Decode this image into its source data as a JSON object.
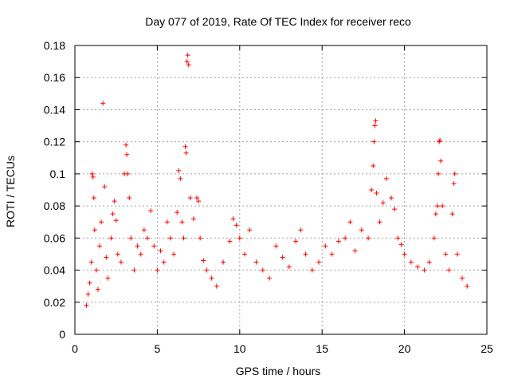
{
  "chart_data": {
    "type": "scatter",
    "title": "Day 077 of 2019, Rate Of TEC Index for receiver reco",
    "xlabel": "GPS time / hours",
    "ylabel": "ROTI / TECUs",
    "xlim": [
      0,
      25
    ],
    "ylim": [
      0,
      0.18
    ],
    "xticks": [
      0,
      5,
      10,
      15,
      20,
      25
    ],
    "xtick_labels": [
      "0",
      "5",
      "10",
      "15",
      "20",
      "25"
    ],
    "yticks": [
      0,
      0.02,
      0.04,
      0.06,
      0.08,
      0.1,
      0.12,
      0.14,
      0.16,
      0.18
    ],
    "ytick_labels": [
      "0",
      "0.02",
      "0.04",
      "0.06",
      "0.08",
      "0.1",
      "0.12",
      "0.14",
      "0.16",
      "0.18"
    ],
    "grid": true,
    "marker": "+",
    "series": [
      {
        "name": "ROTI",
        "color": "#ff0000",
        "points": [
          [
            0.7,
            0.018
          ],
          [
            0.8,
            0.025
          ],
          [
            0.9,
            0.032
          ],
          [
            1.0,
            0.045
          ],
          [
            1.05,
            0.1
          ],
          [
            1.1,
            0.098
          ],
          [
            1.15,
            0.085
          ],
          [
            1.2,
            0.065
          ],
          [
            1.3,
            0.04
          ],
          [
            1.4,
            0.028
          ],
          [
            1.5,
            0.055
          ],
          [
            1.6,
            0.07
          ],
          [
            1.7,
            0.144
          ],
          [
            1.8,
            0.092
          ],
          [
            1.9,
            0.048
          ],
          [
            2.0,
            0.035
          ],
          [
            2.2,
            0.06
          ],
          [
            2.3,
            0.075
          ],
          [
            2.4,
            0.083
          ],
          [
            2.5,
            0.071
          ],
          [
            2.6,
            0.05
          ],
          [
            2.8,
            0.045
          ],
          [
            3.0,
            0.1
          ],
          [
            3.1,
            0.118
          ],
          [
            3.15,
            0.112
          ],
          [
            3.2,
            0.1
          ],
          [
            3.3,
            0.085
          ],
          [
            3.4,
            0.06
          ],
          [
            3.6,
            0.04
          ],
          [
            3.8,
            0.055
          ],
          [
            4.0,
            0.05
          ],
          [
            4.2,
            0.065
          ],
          [
            4.4,
            0.06
          ],
          [
            4.6,
            0.077
          ],
          [
            4.8,
            0.055
          ],
          [
            5.0,
            0.04
          ],
          [
            5.2,
            0.052
          ],
          [
            5.4,
            0.045
          ],
          [
            5.6,
            0.07
          ],
          [
            5.8,
            0.06
          ],
          [
            6.0,
            0.05
          ],
          [
            6.2,
            0.076
          ],
          [
            6.3,
            0.102
          ],
          [
            6.4,
            0.097
          ],
          [
            6.5,
            0.07
          ],
          [
            6.6,
            0.06
          ],
          [
            6.7,
            0.117
          ],
          [
            6.75,
            0.113
          ],
          [
            6.8,
            0.17
          ],
          [
            6.85,
            0.174
          ],
          [
            6.9,
            0.168
          ],
          [
            7.0,
            0.085
          ],
          [
            7.2,
            0.072
          ],
          [
            7.4,
            0.085
          ],
          [
            7.5,
            0.083
          ],
          [
            7.6,
            0.06
          ],
          [
            7.8,
            0.046
          ],
          [
            8.0,
            0.04
          ],
          [
            8.3,
            0.035
          ],
          [
            8.6,
            0.03
          ],
          [
            9.0,
            0.045
          ],
          [
            9.4,
            0.058
          ],
          [
            9.6,
            0.072
          ],
          [
            9.8,
            0.068
          ],
          [
            10.0,
            0.06
          ],
          [
            10.3,
            0.05
          ],
          [
            10.6,
            0.065
          ],
          [
            11.0,
            0.045
          ],
          [
            11.4,
            0.04
          ],
          [
            11.8,
            0.035
          ],
          [
            12.2,
            0.055
          ],
          [
            12.6,
            0.048
          ],
          [
            13.0,
            0.042
          ],
          [
            13.4,
            0.058
          ],
          [
            13.7,
            0.065
          ],
          [
            14.0,
            0.05
          ],
          [
            14.4,
            0.04
          ],
          [
            14.8,
            0.045
          ],
          [
            15.2,
            0.055
          ],
          [
            15.6,
            0.05
          ],
          [
            16.0,
            0.058
          ],
          [
            16.4,
            0.06
          ],
          [
            16.7,
            0.07
          ],
          [
            17.0,
            0.052
          ],
          [
            17.4,
            0.065
          ],
          [
            17.8,
            0.06
          ],
          [
            18.0,
            0.09
          ],
          [
            18.1,
            0.105
          ],
          [
            18.15,
            0.12
          ],
          [
            18.2,
            0.13
          ],
          [
            18.25,
            0.133
          ],
          [
            18.3,
            0.088
          ],
          [
            18.5,
            0.07
          ],
          [
            18.7,
            0.082
          ],
          [
            18.9,
            0.097
          ],
          [
            19.2,
            0.085
          ],
          [
            19.4,
            0.078
          ],
          [
            19.6,
            0.06
          ],
          [
            19.8,
            0.056
          ],
          [
            20.0,
            0.05
          ],
          [
            20.4,
            0.045
          ],
          [
            20.8,
            0.042
          ],
          [
            21.2,
            0.04
          ],
          [
            21.5,
            0.045
          ],
          [
            21.8,
            0.06
          ],
          [
            21.9,
            0.075
          ],
          [
            22.0,
            0.08
          ],
          [
            22.05,
            0.1
          ],
          [
            22.1,
            0.12
          ],
          [
            22.15,
            0.121
          ],
          [
            22.2,
            0.108
          ],
          [
            22.3,
            0.08
          ],
          [
            22.5,
            0.05
          ],
          [
            22.7,
            0.04
          ],
          [
            22.9,
            0.075
          ],
          [
            23.0,
            0.094
          ],
          [
            23.05,
            0.1
          ],
          [
            23.2,
            0.05
          ],
          [
            23.5,
            0.035
          ],
          [
            23.8,
            0.03
          ]
        ]
      }
    ]
  }
}
